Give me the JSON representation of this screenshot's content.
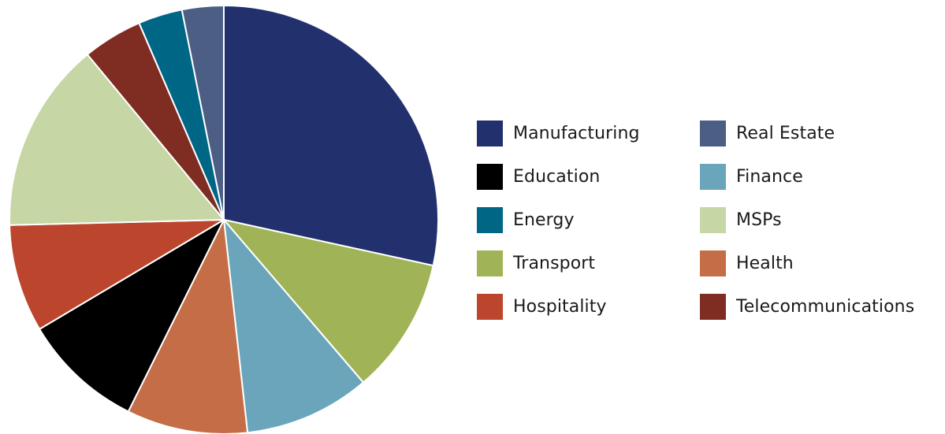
{
  "chart_data": {
    "type": "pie",
    "title": "",
    "legend_position": "right",
    "start_angle_deg": 0,
    "direction": "clockwise",
    "slices": [
      {
        "label": "Manufacturing",
        "value": 29,
        "color": "#22306e"
      },
      {
        "label": "Transport",
        "value": 10.5,
        "color": "#a0b356"
      },
      {
        "label": "Finance",
        "value": 9.7,
        "color": "#6ba5bb"
      },
      {
        "label": "Health",
        "value": 9.3,
        "color": "#c46d46"
      },
      {
        "label": "Education",
        "value": 9.3,
        "color": "#000000"
      },
      {
        "label": "Hospitality",
        "value": 8.3,
        "color": "#bc462d"
      },
      {
        "label": "MSPs",
        "value": 14.7,
        "color": "#c6d6a5"
      },
      {
        "label": "Telecommunications",
        "value": 4.6,
        "color": "#7f2c22"
      },
      {
        "label": "Energy",
        "value": 3.4,
        "color": "#006685"
      },
      {
        "label": "Real Estate",
        "value": 3.2,
        "color": "#4d5e85"
      }
    ],
    "legend": [
      {
        "label": "Manufacturing",
        "color": "#22306e"
      },
      {
        "label": "Education",
        "color": "#000000"
      },
      {
        "label": "Energy",
        "color": "#006685"
      },
      {
        "label": "Transport",
        "color": "#a0b356"
      },
      {
        "label": "Hospitality",
        "color": "#bc462d"
      },
      {
        "label": "Real Estate",
        "color": "#4d5e85"
      },
      {
        "label": "Finance",
        "color": "#6ba5bb"
      },
      {
        "label": "MSPs",
        "color": "#c6d6a5"
      },
      {
        "label": "Health",
        "color": "#c46d46"
      },
      {
        "label": "Telecommunications",
        "color": "#7f2c22"
      }
    ]
  }
}
